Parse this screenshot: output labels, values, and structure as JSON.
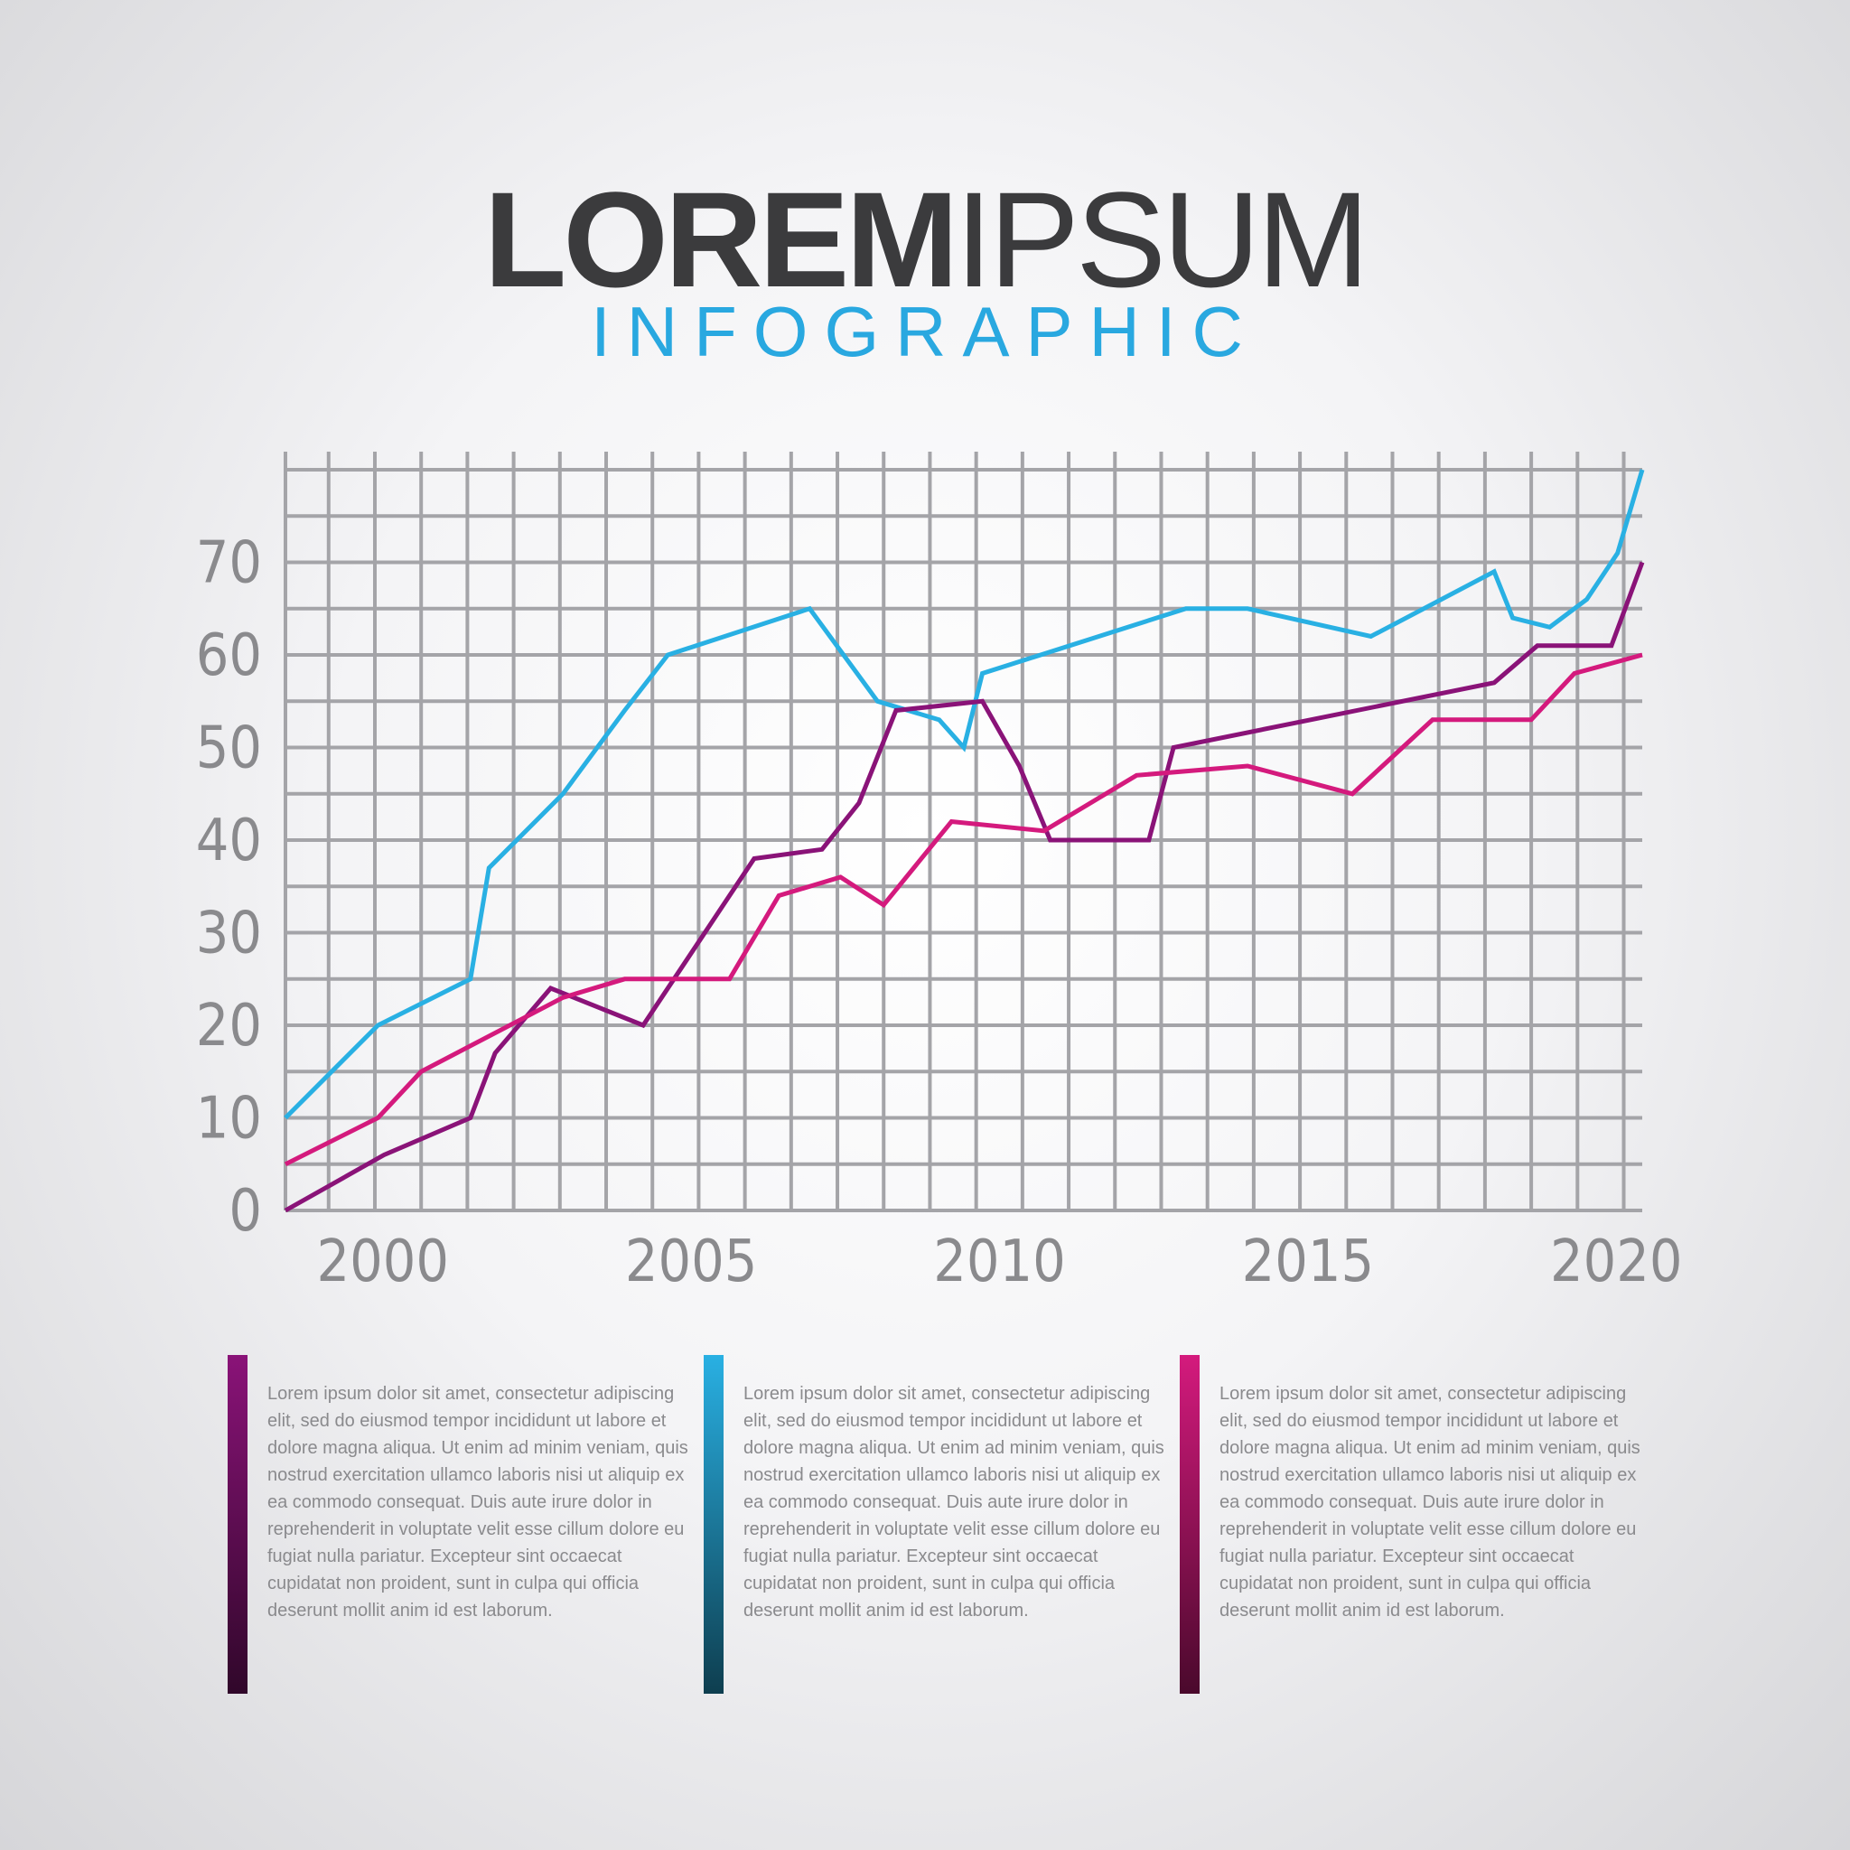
{
  "header": {
    "title_bold": "LOREM",
    "title_light": "IPSUM",
    "subtitle": "INFOGRAPHIC"
  },
  "colors": {
    "blue": "#29b0e3",
    "purple": "#8a1378",
    "magenta": "#d41a7d",
    "grid": "#a4a4a8",
    "tick": "#8a8a8d"
  },
  "chart_data": {
    "type": "line",
    "title": "",
    "xlabel": "",
    "ylabel": "",
    "xlim": [
      1999.3,
      2021.3
    ],
    "ylim": [
      0,
      80
    ],
    "x_ticks": [
      2000,
      2005,
      2010,
      2015,
      2020
    ],
    "y_ticks": [
      0,
      10,
      20,
      30,
      40,
      50,
      60,
      70
    ],
    "grid": true,
    "series": [
      {
        "color": "#29b0e3",
        "points": [
          [
            1999.3,
            10
          ],
          [
            2000.8,
            20
          ],
          [
            2002.3,
            25
          ],
          [
            2002.6,
            37
          ],
          [
            2003.8,
            45
          ],
          [
            2004.8,
            54
          ],
          [
            2005.5,
            60
          ],
          [
            2007.8,
            65
          ],
          [
            2008.9,
            55
          ],
          [
            2009.9,
            53
          ],
          [
            2010.3,
            50
          ],
          [
            2010.6,
            58
          ],
          [
            2013.9,
            65
          ],
          [
            2014.9,
            65
          ],
          [
            2016.9,
            62
          ],
          [
            2018.9,
            69
          ],
          [
            2019.2,
            64
          ],
          [
            2019.8,
            63
          ],
          [
            2020.4,
            66
          ],
          [
            2020.9,
            71
          ],
          [
            2021.3,
            80
          ]
        ]
      },
      {
        "color": "#8a1378",
        "points": [
          [
            1999.3,
            0
          ],
          [
            2000.9,
            6
          ],
          [
            2002.3,
            10
          ],
          [
            2002.7,
            17
          ],
          [
            2003.6,
            24
          ],
          [
            2005.1,
            20
          ],
          [
            2006.9,
            38
          ],
          [
            2008.0,
            39
          ],
          [
            2008.6,
            44
          ],
          [
            2009.2,
            54
          ],
          [
            2010.6,
            55
          ],
          [
            2011.2,
            48
          ],
          [
            2011.7,
            40
          ],
          [
            2012.6,
            40
          ],
          [
            2013.3,
            40
          ],
          [
            2013.7,
            50
          ],
          [
            2018.9,
            57
          ],
          [
            2019.6,
            61
          ],
          [
            2020.8,
            61
          ],
          [
            2021.3,
            70
          ]
        ]
      },
      {
        "color": "#d41a7d",
        "points": [
          [
            1999.3,
            5
          ],
          [
            2000.8,
            10
          ],
          [
            2001.5,
            15
          ],
          [
            2003.8,
            23
          ],
          [
            2004.8,
            25
          ],
          [
            2006.5,
            25
          ],
          [
            2007.3,
            34
          ],
          [
            2008.3,
            36
          ],
          [
            2009.0,
            33
          ],
          [
            2010.1,
            42
          ],
          [
            2011.6,
            41
          ],
          [
            2013.1,
            47
          ],
          [
            2014.9,
            48
          ],
          [
            2016.6,
            45
          ],
          [
            2017.9,
            53
          ],
          [
            2019.5,
            53
          ],
          [
            2020.2,
            58
          ],
          [
            2021.3,
            60
          ]
        ]
      }
    ]
  },
  "notes": [
    {
      "color": "#8a1378",
      "text": "Lorem ipsum dolor sit amet, consectetur adipiscing elit, sed do eiusmod tempor incididunt ut labore et dolore magna aliqua. Ut enim ad minim veniam, quis nostrud exercitation ullamco laboris nisi ut aliquip ex ea commodo consequat. Duis aute irure dolor in reprehenderit in voluptate velit esse cillum dolore eu fugiat nulla pariatur. Excepteur sint occaecat cupidatat non proident, sunt in culpa qui officia deserunt mollit anim id est laborum."
    },
    {
      "color": "#29b0e3",
      "text": "Lorem ipsum dolor sit amet, consectetur adipiscing elit, sed do eiusmod tempor incididunt ut labore et dolore magna aliqua. Ut enim ad minim veniam, quis nostrud exercitation ullamco laboris nisi ut aliquip ex ea commodo consequat. Duis aute irure dolor in reprehenderit in voluptate velit esse cillum dolore eu fugiat nulla pariatur. Excepteur sint occaecat cupidatat non proident, sunt in culpa qui officia deserunt mollit anim id est laborum."
    },
    {
      "color": "#d41a7d",
      "text": "Lorem ipsum dolor sit amet, consectetur adipiscing elit, sed do eiusmod tempor incididunt ut labore et dolore magna aliqua. Ut enim ad minim veniam, quis nostrud exercitation ullamco laboris nisi ut aliquip ex ea commodo consequat. Duis aute irure dolor in reprehenderit in voluptate velit esse cillum dolore eu fugiat nulla pariatur. Excepteur sint occaecat cupidatat non proident, sunt in culpa qui officia deserunt mollit anim id est laborum."
    }
  ]
}
